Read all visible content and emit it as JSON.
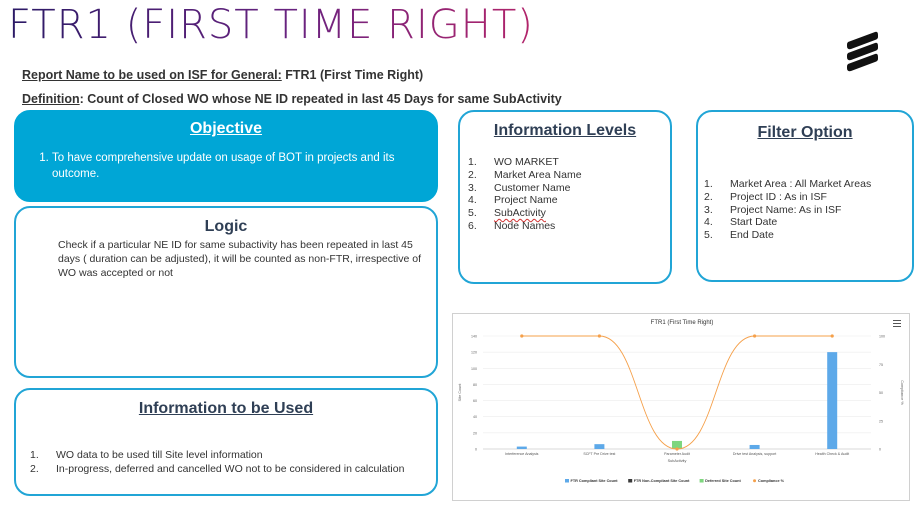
{
  "header": {
    "title": "FTR1 (FIRST TIME RIGHT)",
    "report_label": "Report Name to be used on ISF for General:",
    "report_value": "FTR1 (First Time Right)",
    "definition_label": "Definition",
    "definition_value": ": Count of Closed WO whose NE ID repeated in last 45 Days for same SubActivity"
  },
  "objective": {
    "title": "Objective",
    "items": [
      "To have comprehensive update on usage of BOT in projects and its outcome."
    ]
  },
  "logic": {
    "title": "Logic",
    "text": "Check if a particular NE ID for same subactivity has been repeated in last 45 days ( duration can be adjusted), it will be counted as non-FTR, irrespective of WO was accepted or not"
  },
  "information_used": {
    "title": "Information to be Used",
    "items": [
      {
        "n": "1.",
        "text": "WO data to be used till Site level information"
      },
      {
        "n": "2.",
        "text": "In-progress, deferred and cancelled WO not to be considered in calculation"
      }
    ]
  },
  "information_levels": {
    "title": "Information Levels",
    "items": [
      {
        "n": "1.",
        "text": "WO MARKET"
      },
      {
        "n": "2.",
        "text": "Market Area Name"
      },
      {
        "n": "3.",
        "text": "Customer Name"
      },
      {
        "n": "4.",
        "text": "Project Name"
      },
      {
        "n": "5.",
        "text": "SubActivity"
      },
      {
        "n": "6.",
        "text": "Node Names"
      }
    ]
  },
  "filter_option": {
    "title": "Filter Option",
    "items": [
      {
        "n": "1.",
        "text": "Market Area : All Market Areas"
      },
      {
        "n": "2.",
        "text": "Project ID : As in ISF"
      },
      {
        "n": "3.",
        "text": "Project Name: As in ISF"
      },
      {
        "n": "4.",
        "text": "Start Date"
      },
      {
        "n": "5.",
        "text": "End Date"
      }
    ]
  },
  "colors": {
    "accent": "#00a6d6",
    "border": "#21a5d6",
    "bar_blue": "#5da9e9",
    "bar_green": "#7ed67e",
    "line_orange": "#f5a04a"
  },
  "chart_data": {
    "type": "bar",
    "title": "FTR1 (First Time Right)",
    "xlabel": "SubActivity",
    "ylabel_left": "Site Count",
    "ylabel_right": "Compliance %",
    "categories": [
      "Interference Analysis",
      "SCFT Pre Drive test",
      "Parameter Audit",
      "Drive test Analysis, support",
      "Health Check & Audit"
    ],
    "ylim_left": [
      0,
      140
    ],
    "yticks_left": [
      0,
      20,
      40,
      60,
      80,
      100,
      120,
      140
    ],
    "ylim_right": [
      0,
      100
    ],
    "yticks_right": [
      0,
      25,
      50,
      75,
      100
    ],
    "series": [
      {
        "name": "FTR Compliant Site Count",
        "type": "bar",
        "axis": "left",
        "color": "#5da9e9",
        "values": [
          3,
          6,
          0,
          5,
          120
        ]
      },
      {
        "name": "FTR Non-Compliant Site Count",
        "type": "bar",
        "axis": "left",
        "color": "#3a3a3a",
        "values": [
          0,
          0,
          0,
          0,
          0
        ]
      },
      {
        "name": "Deferred Site Count",
        "type": "bar",
        "axis": "left",
        "color": "#7ed67e",
        "values": [
          0,
          0,
          10,
          0,
          0
        ]
      },
      {
        "name": "Compliance %",
        "type": "line",
        "axis": "right",
        "color": "#f5a04a",
        "values": [
          100,
          100,
          0,
          100,
          100
        ]
      }
    ],
    "legend_position": "bottom"
  }
}
